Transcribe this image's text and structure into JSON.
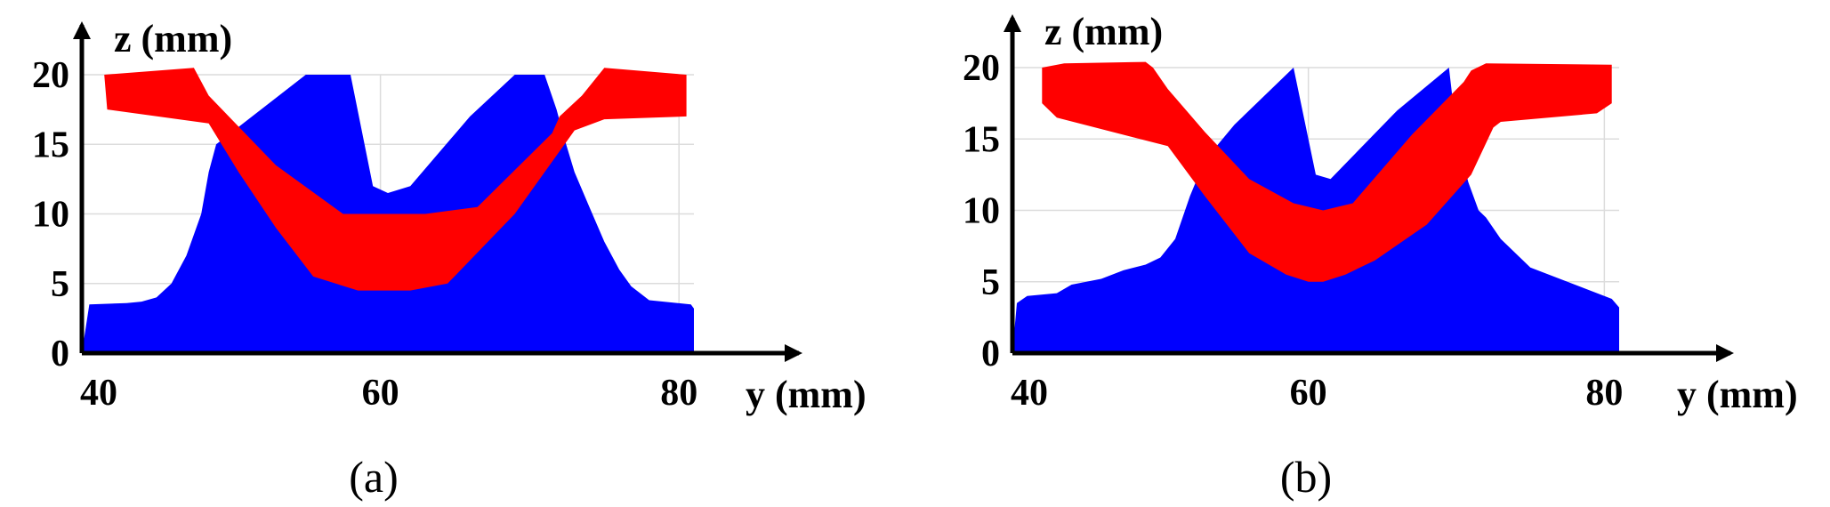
{
  "chart_data": [
    {
      "type": "area",
      "caption": "(a)",
      "xlabel": "y (mm)",
      "ylabel": "z (mm)",
      "xlim": [
        40,
        81
      ],
      "ylim": [
        0,
        20
      ],
      "xticks": [
        "40",
        "60",
        "80"
      ],
      "yticks": [
        "0",
        "5",
        "10",
        "15",
        "20"
      ],
      "colors": {
        "workpiece": "#0000ff",
        "tool": "#ff0000"
      },
      "series": [
        {
          "key": "workpiece",
          "color": "#0000ff",
          "x": [
            40,
            40.5,
            43,
            44,
            45,
            46,
            47,
            48,
            48.5,
            49,
            52,
            55,
            58,
            59.5,
            60.5,
            62,
            66,
            69,
            71,
            71.8,
            72.3,
            73,
            74,
            75,
            76,
            76.8,
            78,
            80.8,
            81,
            81
          ],
          "y": [
            0,
            3.5,
            3.6,
            3.7,
            4,
            5,
            7,
            10,
            13,
            15,
            17.5,
            20,
            20,
            12,
            11.5,
            12,
            17,
            20,
            20,
            17.5,
            15.5,
            13,
            10.5,
            8,
            6,
            4.8,
            3.8,
            3.5,
            3.2,
            0
          ]
        },
        {
          "key": "tool",
          "color": "#ff0000",
          "x": [
            41.5,
            47.5,
            48,
            48.5,
            53,
            57.5,
            60,
            63,
            66.5,
            71.5,
            72,
            73.5,
            75,
            80.5,
            80.5,
            75,
            73,
            69,
            64.5,
            62,
            58.5,
            57,
            55.5,
            53,
            50.5,
            48.5,
            41.7
          ],
          "y": [
            20,
            20.5,
            19.5,
            18.5,
            13.5,
            10,
            10,
            10,
            10.5,
            15.8,
            17,
            18.5,
            20.5,
            20,
            17,
            16.8,
            16,
            10,
            5,
            4.5,
            4.5,
            5,
            5.5,
            9,
            13,
            16.5,
            17.5
          ]
        }
      ]
    },
    {
      "type": "area",
      "caption": "(b)",
      "xlabel": "y (mm)",
      "ylabel": "z (mm)",
      "xlim": [
        40,
        81
      ],
      "ylim": [
        0,
        20
      ],
      "xticks": [
        "40",
        "60",
        "80"
      ],
      "yticks": [
        "0",
        "5",
        "10",
        "15",
        "20"
      ],
      "colors": {
        "workpiece": "#0000ff",
        "tool": "#ff0000"
      },
      "series": [
        {
          "key": "workpiece",
          "color": "#0000ff",
          "x": [
            40,
            40.3,
            41,
            43,
            44,
            46,
            47.5,
            49,
            50,
            51,
            51.5,
            52,
            53,
            55,
            59,
            60.5,
            61.5,
            66,
            69.5,
            70,
            70.8,
            71.5,
            72,
            73,
            75,
            77.5,
            80.5,
            81,
            81
          ],
          "y": [
            0,
            3.5,
            4,
            4.2,
            4.8,
            5.2,
            5.8,
            6.2,
            6.7,
            8,
            9.5,
            11,
            13.5,
            16,
            20,
            12.5,
            12.2,
            17,
            20,
            15.5,
            12,
            10,
            9.5,
            8,
            6,
            5,
            3.8,
            3.2,
            0
          ]
        },
        {
          "key": "tool",
          "color": "#ff0000",
          "x": [
            42,
            43.5,
            49,
            49.5,
            50.5,
            53,
            56,
            59,
            61,
            63,
            67,
            70.5,
            71,
            72,
            80.5,
            80.5,
            79.5,
            73,
            72.5,
            71,
            68,
            64.5,
            62.5,
            61,
            60,
            58.5,
            56,
            53,
            50.5,
            43,
            42
          ],
          "y": [
            20,
            20.3,
            20.4,
            20,
            18.5,
            15.5,
            12.2,
            10.5,
            10,
            10.5,
            15.3,
            19,
            19.8,
            20.3,
            20.2,
            17.5,
            16.8,
            16.2,
            15.8,
            12.5,
            9,
            6.5,
            5.5,
            5,
            5,
            5.5,
            7,
            11,
            14.5,
            16.5,
            17.5
          ]
        }
      ]
    }
  ]
}
